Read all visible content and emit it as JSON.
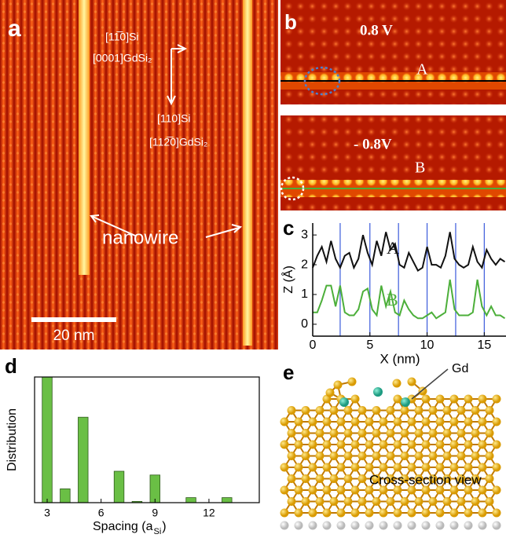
{
  "panels": {
    "a": {
      "label": "a",
      "annotations": [
        "[11̅0]Si",
        "[0001]GdSi₂",
        "[110]Si",
        "[112̅0]GdSi₂"
      ],
      "nanowire": "nanowire",
      "scale_bar": "20 nm"
    },
    "b": {
      "label": "b",
      "top_bias": "0.8 V",
      "top_marker": "A",
      "bottom_bias": "- 0.8V",
      "bottom_marker": "B"
    },
    "e": {
      "label": "e",
      "atom_label": "Gd",
      "caption": "Cross-section view"
    }
  },
  "chart_data": [
    {
      "type": "line",
      "panel_label": "c",
      "xlabel": "X (nm)",
      "ylabel": "Z (Å)",
      "x": [
        0,
        0.4,
        0.8,
        1.2,
        1.6,
        2,
        2.4,
        2.8,
        3.2,
        3.6,
        4,
        4.4,
        4.8,
        5.2,
        5.6,
        6,
        6.4,
        6.8,
        7.2,
        7.6,
        8,
        8.4,
        8.8,
        9.2,
        9.6,
        10,
        10.4,
        10.8,
        11.2,
        11.6,
        12,
        12.4,
        12.8,
        13.2,
        13.6,
        14,
        14.4,
        14.8,
        15.2,
        15.6,
        16,
        16.4,
        16.8
      ],
      "series": [
        {
          "name": "A",
          "color": "#111111",
          "values": [
            1.9,
            2.3,
            2.6,
            2.1,
            2.8,
            2.2,
            1.9,
            2.3,
            2.4,
            1.9,
            2.2,
            3.0,
            2.4,
            2.0,
            2.8,
            2.3,
            3.1,
            2.5,
            2.7,
            2.0,
            1.9,
            2.4,
            2.1,
            1.8,
            1.9,
            2.6,
            2.0,
            2.0,
            1.9,
            2.3,
            3.1,
            2.2,
            2.0,
            1.9,
            2.0,
            2.6,
            2.1,
            1.9,
            2.5,
            2.2,
            2.0,
            2.2,
            2.1
          ]
        },
        {
          "name": "B",
          "color": "#4caf3a",
          "values": [
            0.4,
            0.4,
            0.8,
            1.3,
            1.3,
            0.6,
            1.3,
            0.4,
            0.3,
            0.3,
            0.5,
            1.1,
            1.2,
            0.5,
            0.3,
            1.3,
            0.6,
            1.1,
            0.4,
            0.3,
            0.8,
            0.5,
            0.3,
            0.2,
            0.2,
            0.3,
            0.4,
            0.2,
            0.3,
            0.4,
            1.5,
            0.5,
            0.3,
            0.3,
            0.3,
            0.4,
            1.5,
            0.6,
            0.3,
            0.6,
            0.3,
            0.3,
            0.2
          ]
        }
      ],
      "vlines": [
        2.4,
        5,
        7.5,
        10,
        12.5,
        15
      ],
      "vline_color": "#3b5bdb",
      "xlim": [
        0,
        16.9
      ],
      "ylim": [
        -0.4,
        3.4
      ],
      "xticks": [
        0,
        5,
        10,
        15
      ],
      "yticks": [
        0,
        1,
        2,
        3
      ]
    },
    {
      "type": "bar",
      "panel_label": "d",
      "xlabel": "Spacing (a",
      "xlabel_sub": "Si",
      "xlabel_end": ")",
      "ylabel": "Distribution",
      "x": [
        3,
        4,
        5,
        7,
        8,
        9,
        11,
        13
      ],
      "values": [
        100,
        11,
        68,
        25,
        1,
        22,
        4,
        4
      ],
      "color": "#6abf45",
      "xlim": [
        2.3,
        14.8
      ],
      "ylim": [
        0,
        100
      ],
      "xticks": [
        3,
        6,
        9,
        12
      ]
    }
  ]
}
